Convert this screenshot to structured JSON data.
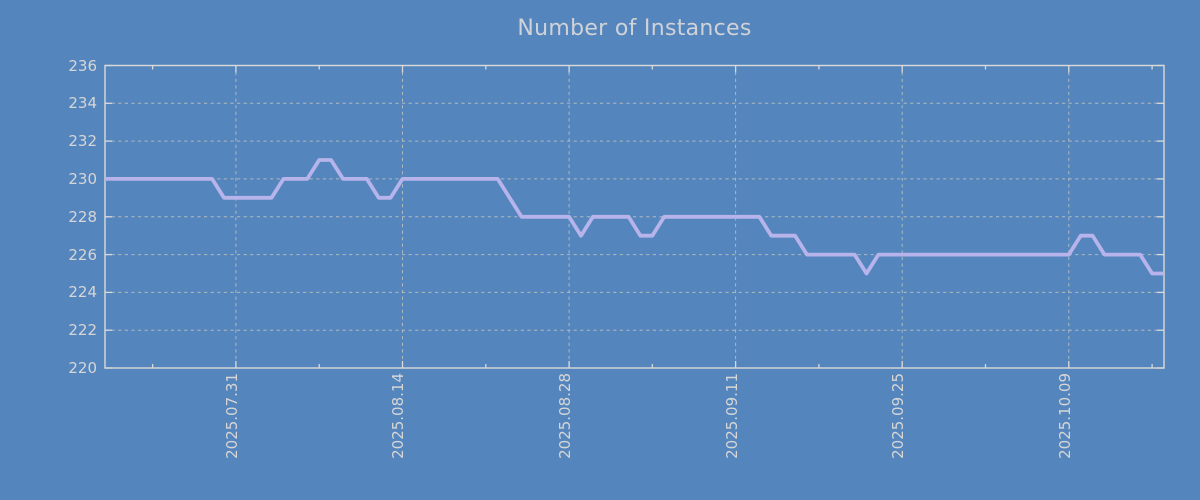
{
  "chart_data": {
    "type": "line",
    "title": "Number of Instances",
    "xlabel": "",
    "ylabel": "",
    "ylim": [
      220,
      236
    ],
    "y_ticks": [
      220,
      222,
      224,
      226,
      228,
      230,
      232,
      234,
      236
    ],
    "grid": true,
    "legend_position": "none",
    "x_ticks": [
      {
        "label": "2025.07.31",
        "index": 11
      },
      {
        "label": "2025.08.14",
        "index": 25
      },
      {
        "label": "2025.08.28",
        "index": 39
      },
      {
        "label": "2025.09.11",
        "index": 53
      },
      {
        "label": "2025.09.25",
        "index": 67
      },
      {
        "label": "2025.10.09",
        "index": 81
      }
    ],
    "x_minor_tick_indices": [
      4,
      18,
      32,
      46,
      60,
      74,
      88
    ],
    "colors": {
      "background": "#5585bd",
      "line": "#b6b4ea",
      "grid": "#c4c7bd",
      "border": "#d9d9d9",
      "tick_text": "#d6d6d6",
      "title_text": "#cfd2d7"
    },
    "series": [
      {
        "name": "instances",
        "dates": [
          "2025.07.20",
          "2025.07.21",
          "2025.07.22",
          "2025.07.23",
          "2025.07.24",
          "2025.07.25",
          "2025.07.26",
          "2025.07.27",
          "2025.07.28",
          "2025.07.29",
          "2025.07.30",
          "2025.07.31",
          "2025.08.01",
          "2025.08.02",
          "2025.08.03",
          "2025.08.04",
          "2025.08.05",
          "2025.08.06",
          "2025.08.07",
          "2025.08.08",
          "2025.08.09",
          "2025.08.10",
          "2025.08.11",
          "2025.08.12",
          "2025.08.13",
          "2025.08.14",
          "2025.08.15",
          "2025.08.16",
          "2025.08.17",
          "2025.08.18",
          "2025.08.19",
          "2025.08.20",
          "2025.08.21",
          "2025.08.22",
          "2025.08.23",
          "2025.08.24",
          "2025.08.25",
          "2025.08.26",
          "2025.08.27",
          "2025.08.28",
          "2025.08.29",
          "2025.08.30",
          "2025.08.31",
          "2025.09.01",
          "2025.09.02",
          "2025.09.03",
          "2025.09.04",
          "2025.09.05",
          "2025.09.06",
          "2025.09.07",
          "2025.09.08",
          "2025.09.09",
          "2025.09.10",
          "2025.09.11",
          "2025.09.12",
          "2025.09.13",
          "2025.09.14",
          "2025.09.15",
          "2025.09.16",
          "2025.09.17",
          "2025.09.18",
          "2025.09.19",
          "2025.09.20",
          "2025.09.21",
          "2025.09.22",
          "2025.09.23",
          "2025.09.24",
          "2025.09.25",
          "2025.09.26",
          "2025.09.27",
          "2025.09.28",
          "2025.09.29",
          "2025.09.30",
          "2025.10.01",
          "2025.10.02",
          "2025.10.03",
          "2025.10.04",
          "2025.10.05",
          "2025.10.06",
          "2025.10.07",
          "2025.10.08",
          "2025.10.09",
          "2025.10.10",
          "2025.10.11",
          "2025.10.12",
          "2025.10.13",
          "2025.10.14",
          "2025.10.15",
          "2025.10.16",
          "2025.10.17"
        ],
        "values": [
          230,
          230,
          230,
          230,
          230,
          230,
          230,
          230,
          230,
          230,
          229,
          229,
          229,
          229,
          229,
          230,
          230,
          230,
          231,
          231,
          230,
          230,
          230,
          229,
          229,
          230,
          230,
          230,
          230,
          230,
          230,
          230,
          230,
          230,
          229,
          228,
          228,
          228,
          228,
          228,
          227,
          228,
          228,
          228,
          228,
          227,
          227,
          228,
          228,
          228,
          228,
          228,
          228,
          228,
          228,
          228,
          227,
          227,
          227,
          226,
          226,
          226,
          226,
          226,
          225,
          226,
          226,
          226,
          226,
          226,
          226,
          226,
          226,
          226,
          226,
          226,
          226,
          226,
          226,
          226,
          226,
          226,
          227,
          227,
          226,
          226,
          226,
          226,
          225,
          225
        ]
      }
    ]
  }
}
